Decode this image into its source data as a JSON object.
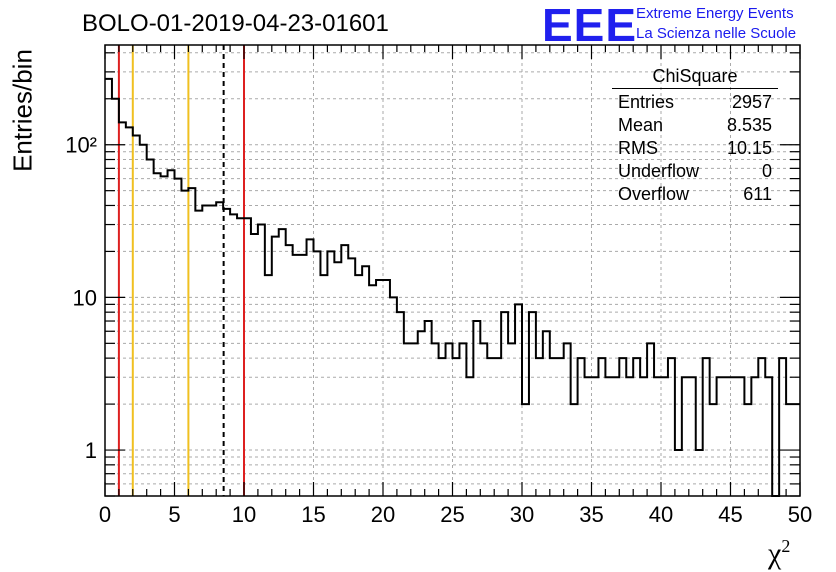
{
  "title": "BOLO-01-2019-04-23-01601",
  "logo": {
    "mark": "EEE",
    "line1": "Extreme Energy Events",
    "line2": "La Scienza nelle Scuole",
    "color": "#2020ee"
  },
  "stats_box": {
    "name": "ChiSquare",
    "rows": [
      {
        "label": "Entries",
        "value": "2957"
      },
      {
        "label": "Mean",
        "value": "8.535"
      },
      {
        "label": "RMS",
        "value": "10.15"
      },
      {
        "label": "Underflow",
        "value": "0"
      },
      {
        "label": "Overflow",
        "value": "611"
      }
    ]
  },
  "chart_data": {
    "type": "bar",
    "histogram": "step",
    "title": "BOLO-01-2019-04-23-01601",
    "xlabel": "χ²",
    "ylabel": "Entries/bin",
    "xlim": [
      0,
      50
    ],
    "ylim": [
      0.5,
      450
    ],
    "y_scale": "log",
    "grid": true,
    "x_ticks": [
      "0",
      "5",
      "10",
      "15",
      "20",
      "25",
      "30",
      "35",
      "40",
      "45",
      "50"
    ],
    "y_ticks": [
      {
        "value": 1,
        "label": "1"
      },
      {
        "value": 10,
        "label": "10"
      },
      {
        "value": 100,
        "label": "10²"
      }
    ],
    "bin_width": 0.5,
    "counts": [
      270,
      200,
      140,
      130,
      115,
      100,
      80,
      65,
      62,
      68,
      60,
      50,
      52,
      37,
      40,
      40,
      42,
      38,
      35,
      33,
      33,
      26,
      30,
      14,
      25,
      28,
      22,
      19,
      19,
      24,
      20,
      14,
      20,
      17,
      22,
      18,
      14,
      16,
      12,
      13,
      13,
      10,
      8,
      5,
      5,
      6,
      7,
      5,
      4,
      5,
      4,
      5,
      3,
      7,
      5,
      4,
      4,
      8,
      5,
      9,
      2,
      8,
      4,
      6,
      4,
      4,
      5,
      2,
      4,
      3,
      3,
      4,
      3,
      3,
      4,
      3,
      4,
      3,
      5,
      3,
      3,
      4,
      1,
      3,
      3,
      1,
      4,
      2,
      3,
      3,
      3,
      3,
      2,
      3,
      4,
      3,
      0,
      4,
      2,
      2
    ],
    "reference_lines": [
      {
        "x": 1,
        "color": "#dd2020",
        "style": "solid"
      },
      {
        "x": 2,
        "color": "#f0c020",
        "style": "solid"
      },
      {
        "x": 6,
        "color": "#f0c020",
        "style": "solid"
      },
      {
        "x": 8.535,
        "color": "#000000",
        "style": "dashed"
      },
      {
        "x": 10,
        "color": "#dd2020",
        "style": "solid"
      }
    ]
  }
}
